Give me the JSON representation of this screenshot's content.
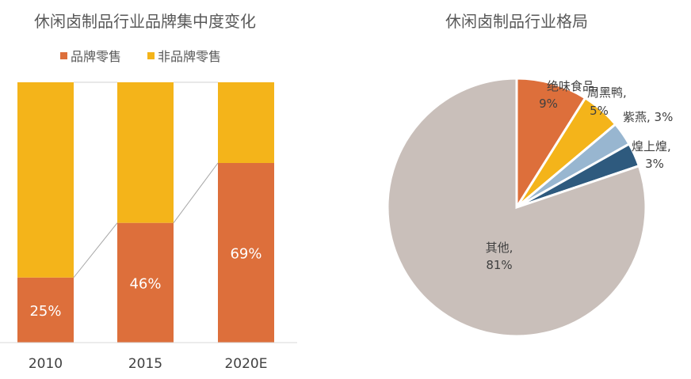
{
  "chart_data": [
    {
      "type": "bar",
      "stacked": true,
      "title": "休闲卤制品行业品牌集中度变化",
      "categories": [
        "2010",
        "2015",
        "2020E"
      ],
      "series": [
        {
          "name": "品牌零售",
          "values": [
            25,
            46,
            69
          ],
          "labels": [
            "25%",
            "46%",
            "69%"
          ],
          "color": "#DD6F3B"
        },
        {
          "name": "非品牌零售",
          "values": [
            75,
            54,
            31
          ],
          "color": "#F4B41A"
        }
      ],
      "ylim": [
        0,
        100
      ],
      "legend": "top",
      "grid": false,
      "series_lines": true
    },
    {
      "type": "pie",
      "title": "休闲卤制品行业格局",
      "slices": [
        {
          "label": "绝味食品",
          "value": 9,
          "text": "9%",
          "color": "#DD6F3B"
        },
        {
          "label": "周黑鸭",
          "value": 5,
          "text": "5%",
          "color": "#F4B41A"
        },
        {
          "label": "紫燕",
          "value": 3,
          "text": "3%",
          "color": "#98B6D0"
        },
        {
          "label": "煌上煌",
          "value": 3,
          "text": "3%",
          "color": "#2E5A7E"
        },
        {
          "label": "其他",
          "value": 81,
          "text": "81%",
          "color": "#C9BFBA"
        }
      ]
    }
  ]
}
